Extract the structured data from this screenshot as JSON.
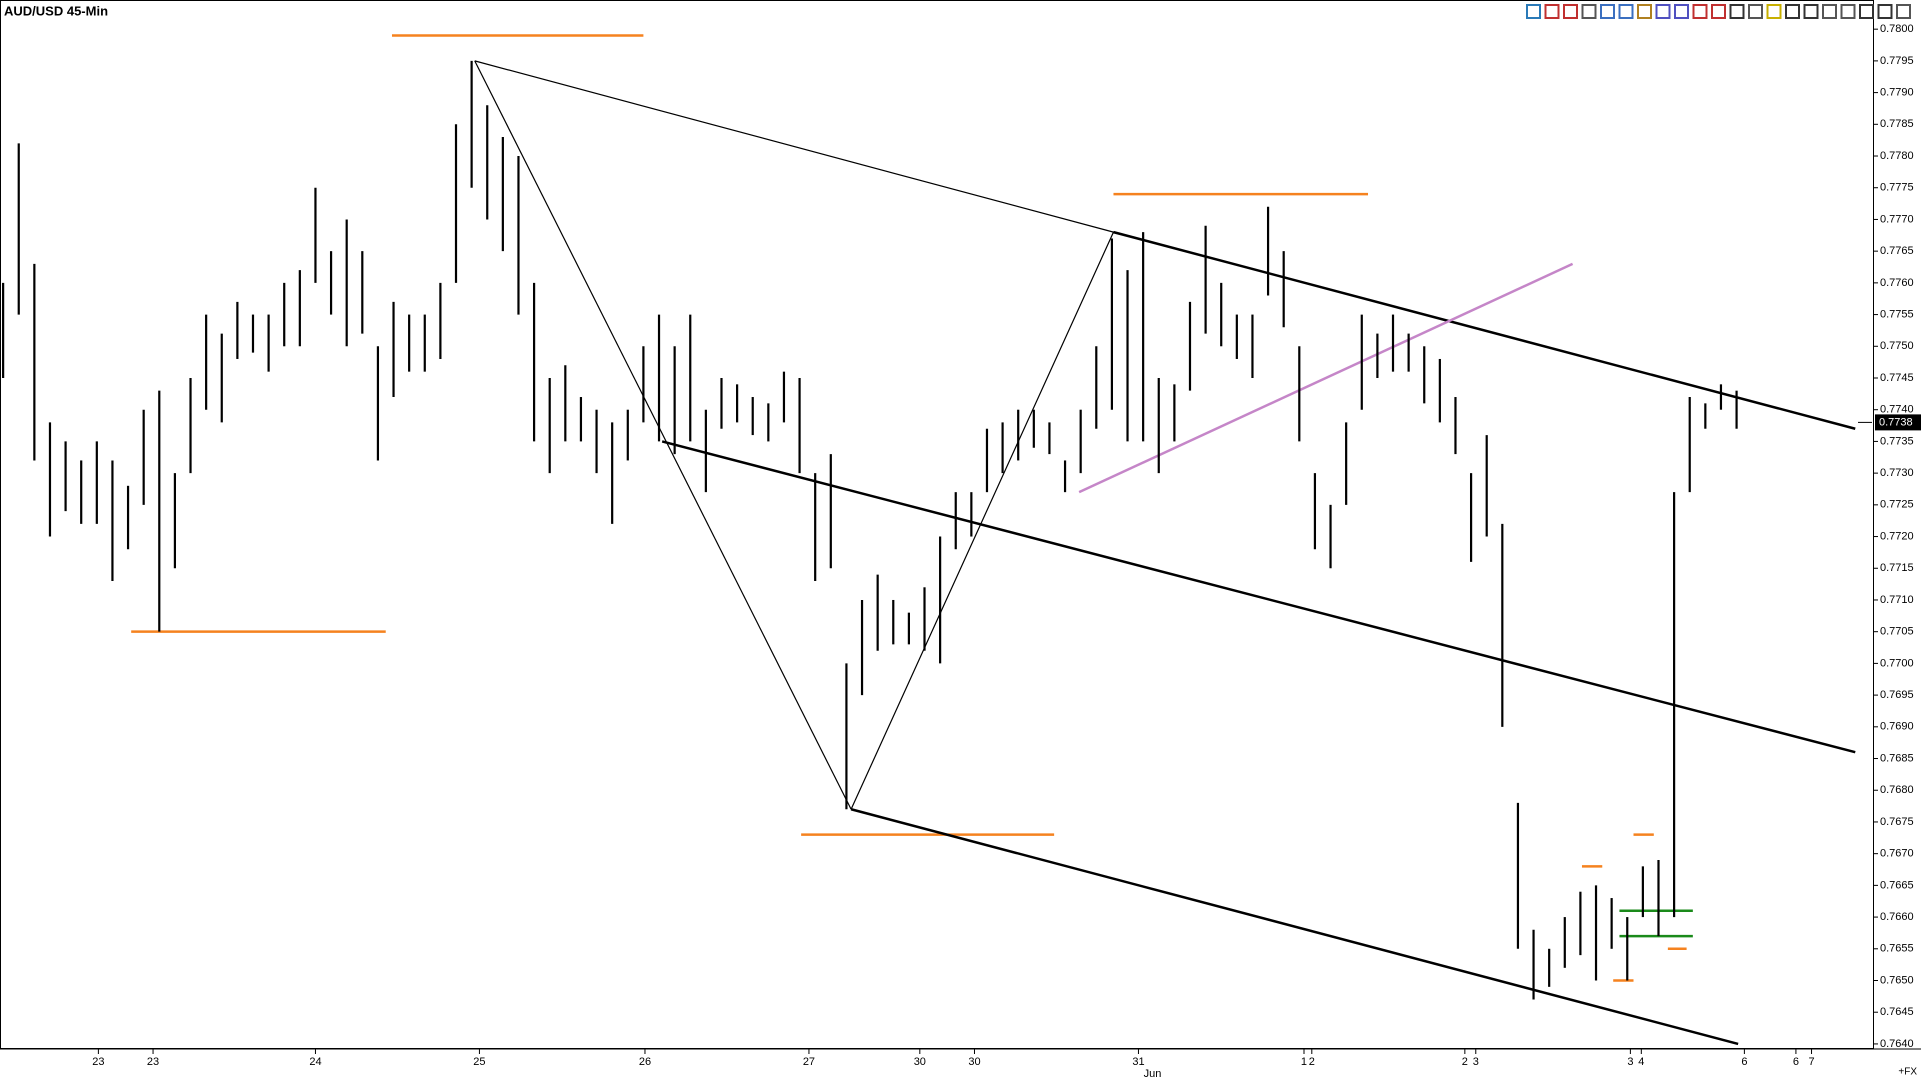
{
  "chart_data": {
    "type": "hilo",
    "title": "AUD/USD 45-Min",
    "corner_label": "+FX",
    "month_label": "Jun",
    "color": "#000000",
    "high": [
      0.776,
      0.7782,
      0.7763,
      0.7738,
      0.7735,
      0.7732,
      0.7735,
      0.7732,
      0.7728,
      0.774,
      0.7743,
      0.773,
      0.7745,
      0.7755,
      0.7752,
      0.7757,
      0.7755,
      0.7755,
      0.776,
      0.7762,
      0.7775,
      0.7765,
      0.777,
      0.7765,
      0.775,
      0.7757,
      0.7755,
      0.7755,
      0.776,
      0.7785,
      0.7795,
      0.7788,
      0.7783,
      0.778,
      0.776,
      0.7745,
      0.7747,
      0.7742,
      0.774,
      0.7738,
      0.774,
      0.775,
      0.7755,
      0.775,
      0.7755,
      0.774,
      0.7745,
      0.7744,
      0.7742,
      0.7741,
      0.7746,
      0.7745,
      0.773,
      0.7733,
      0.77,
      0.771,
      0.7714,
      0.771,
      0.7708,
      0.7712,
      0.772,
      0.7727,
      0.7727,
      0.7737,
      0.7738,
      0.774,
      0.774,
      0.7738,
      0.7732,
      0.774,
      0.775,
      0.7767,
      0.7762,
      0.7768,
      0.7745,
      0.7744,
      0.7757,
      0.7769,
      0.776,
      0.7755,
      0.7755,
      0.7772,
      0.7765,
      0.775,
      0.773,
      0.7725,
      0.7738,
      0.7755,
      0.7752,
      0.7755,
      0.7752,
      0.775,
      0.7748,
      0.7742,
      0.773,
      0.7736,
      0.7722,
      0.7678,
      0.7658,
      0.7655,
      0.766,
      0.7664,
      0.7665,
      0.7663,
      0.766,
      0.7668,
      0.7669,
      0.7727,
      0.7742,
      0.7741,
      0.7744,
      0.7743
    ],
    "low": [
      0.7745,
      0.7755,
      0.7732,
      0.772,
      0.7724,
      0.7722,
      0.7722,
      0.7713,
      0.7718,
      0.7725,
      0.7705,
      0.7715,
      0.773,
      0.774,
      0.7738,
      0.7748,
      0.7749,
      0.7746,
      0.775,
      0.775,
      0.776,
      0.7755,
      0.775,
      0.7752,
      0.7732,
      0.7742,
      0.7746,
      0.7746,
      0.7748,
      0.776,
      0.7775,
      0.777,
      0.7765,
      0.7755,
      0.7735,
      0.773,
      0.7735,
      0.7735,
      0.773,
      0.7722,
      0.7732,
      0.7738,
      0.7735,
      0.7733,
      0.7735,
      0.7727,
      0.7737,
      0.7738,
      0.7736,
      0.7735,
      0.7738,
      0.773,
      0.7713,
      0.7715,
      0.7677,
      0.7695,
      0.7702,
      0.7703,
      0.7703,
      0.7702,
      0.77,
      0.7718,
      0.772,
      0.7727,
      0.773,
      0.7732,
      0.7734,
      0.7733,
      0.7727,
      0.773,
      0.7737,
      0.774,
      0.7735,
      0.7735,
      0.773,
      0.7735,
      0.7743,
      0.7752,
      0.775,
      0.7748,
      0.7745,
      0.7758,
      0.7753,
      0.7735,
      0.7718,
      0.7715,
      0.7725,
      0.774,
      0.7745,
      0.7746,
      0.7746,
      0.7741,
      0.7738,
      0.7733,
      0.7716,
      0.772,
      0.769,
      0.7655,
      0.7647,
      0.7649,
      0.7652,
      0.7654,
      0.765,
      0.7655,
      0.765,
      0.766,
      0.7657,
      0.766,
      0.7727,
      0.7737,
      0.774,
      0.7737
    ],
    "xlim": [
      -0.2,
      119.8
    ],
    "ylim": [
      0.76392,
      0.78046
    ],
    "xticks": [
      {
        "value": 6.1,
        "label": "23"
      },
      {
        "value": 9.6,
        "label": "23"
      },
      {
        "value": 20.0,
        "label": "24"
      },
      {
        "value": 30.5,
        "label": "25"
      },
      {
        "value": 41.1,
        "label": "26"
      },
      {
        "value": 51.6,
        "label": "27"
      },
      {
        "value": 58.7,
        "label": "30"
      },
      {
        "value": 62.2,
        "label": "30"
      },
      {
        "value": 72.7,
        "label": "31"
      },
      {
        "value": 83.3,
        "label": "1"
      },
      {
        "value": 83.8,
        "label": "2"
      },
      {
        "value": 93.6,
        "label": "2"
      },
      {
        "value": 94.3,
        "label": "3"
      },
      {
        "value": 104.2,
        "label": "3"
      },
      {
        "value": 104.9,
        "label": "4"
      },
      {
        "value": 111.5,
        "label": "6"
      },
      {
        "value": 114.8,
        "label": "6"
      },
      {
        "value": 115.8,
        "label": "7"
      }
    ],
    "month_x": 73.6,
    "yticks": [
      {
        "value": 0.764,
        "label": "0.7640"
      },
      {
        "value": 0.7645,
        "label": "0.7645"
      },
      {
        "value": 0.765,
        "label": "0.7650"
      },
      {
        "value": 0.7655,
        "label": "0.7655"
      },
      {
        "value": 0.766,
        "label": "0.7660"
      },
      {
        "value": 0.7665,
        "label": "0.7665"
      },
      {
        "value": 0.767,
        "label": "0.7670"
      },
      {
        "value": 0.7675,
        "label": "0.7675"
      },
      {
        "value": 0.768,
        "label": "0.7680"
      },
      {
        "value": 0.7685,
        "label": "0.7685"
      },
      {
        "value": 0.769,
        "label": "0.7690"
      },
      {
        "value": 0.7695,
        "label": "0.7695"
      },
      {
        "value": 0.77,
        "label": "0.7700"
      },
      {
        "value": 0.7705,
        "label": "0.7705"
      },
      {
        "value": 0.771,
        "label": "0.7710"
      },
      {
        "value": 0.7715,
        "label": "0.7715"
      },
      {
        "value": 0.772,
        "label": "0.7720"
      },
      {
        "value": 0.7725,
        "label": "0.7725"
      },
      {
        "value": 0.773,
        "label": "0.7730"
      },
      {
        "value": 0.7735,
        "label": "0.7735"
      },
      {
        "value": 0.774,
        "label": "0.7740"
      },
      {
        "value": 0.7745,
        "label": "0.7745"
      },
      {
        "value": 0.775,
        "label": "0.7750"
      },
      {
        "value": 0.7755,
        "label": "0.7755"
      },
      {
        "value": 0.776,
        "label": "0.7760"
      },
      {
        "value": 0.7765,
        "label": "0.7765"
      },
      {
        "value": 0.777,
        "label": "0.7770"
      },
      {
        "value": 0.7775,
        "label": "0.7775"
      },
      {
        "value": 0.778,
        "label": "0.7780"
      },
      {
        "value": 0.7785,
        "label": "0.7785"
      },
      {
        "value": 0.779,
        "label": "0.7790"
      },
      {
        "value": 0.7795,
        "label": "0.7795"
      },
      {
        "value": 0.78,
        "label": "0.7800"
      }
    ],
    "last": {
      "value": 0.7738,
      "label": "0.7738"
    },
    "drawings": [
      {
        "color": "#f5821f",
        "weight": "heavy",
        "x1": 24.9,
        "y1": 0.7799,
        "x2": 41.0,
        "y2": 0.7799
      },
      {
        "color": "#f5821f",
        "weight": "heavy",
        "x1": 8.2,
        "y1": 0.7705,
        "x2": 24.5,
        "y2": 0.7705
      },
      {
        "color": "#f5821f",
        "weight": "heavy",
        "x1": 71.1,
        "y1": 0.7774,
        "x2": 87.4,
        "y2": 0.7774
      },
      {
        "color": "#f5821f",
        "weight": "heavy",
        "x1": 51.1,
        "y1": 0.7673,
        "x2": 67.3,
        "y2": 0.7673
      },
      {
        "color": "#f5821f",
        "weight": "heavy",
        "x1": 101.1,
        "y1": 0.7668,
        "x2": 102.4,
        "y2": 0.7668
      },
      {
        "color": "#f5821f",
        "weight": "heavy",
        "x1": 104.4,
        "y1": 0.7673,
        "x2": 105.7,
        "y2": 0.7673
      },
      {
        "color": "#f5821f",
        "weight": "heavy",
        "x1": 103.1,
        "y1": 0.765,
        "x2": 104.4,
        "y2": 0.765
      },
      {
        "color": "#f5821f",
        "weight": "heavy",
        "x1": 106.6,
        "y1": 0.7655,
        "x2": 107.8,
        "y2": 0.7655
      },
      {
        "color": "#1a8a1a",
        "weight": "heavy",
        "x1": 103.5,
        "y1": 0.7661,
        "x2": 108.2,
        "y2": 0.7661
      },
      {
        "color": "#1a8a1a",
        "weight": "heavy",
        "x1": 103.5,
        "y1": 0.7657,
        "x2": 108.2,
        "y2": 0.7657
      },
      {
        "color": "#000000",
        "weight": "light",
        "x1": 30.2,
        "y1": 0.7795,
        "x2": 54.3,
        "y2": 0.7677
      },
      {
        "color": "#000000",
        "weight": "light",
        "x1": 54.3,
        "y1": 0.7677,
        "x2": 71.1,
        "y2": 0.7768
      },
      {
        "color": "#000000",
        "weight": "light",
        "x1": 30.2,
        "y1": 0.7795,
        "x2": 71.1,
        "y2": 0.7768
      },
      {
        "color": "#000000",
        "weight": "heavy",
        "x1": 71.1,
        "y1": 0.7768,
        "x2": 118.6,
        "y2": 0.7737
      },
      {
        "color": "#000000",
        "weight": "heavy",
        "x1": 42.2,
        "y1": 0.7735,
        "x2": 118.6,
        "y2": 0.7686
      },
      {
        "color": "#000000",
        "weight": "heavy",
        "x1": 54.3,
        "y1": 0.7677,
        "x2": 111.1,
        "y2": 0.764
      },
      {
        "color": "#c586c8",
        "weight": "heavy",
        "x1": 68.9,
        "y1": 0.7727,
        "x2": 100.5,
        "y2": 0.7763
      }
    ]
  }
}
